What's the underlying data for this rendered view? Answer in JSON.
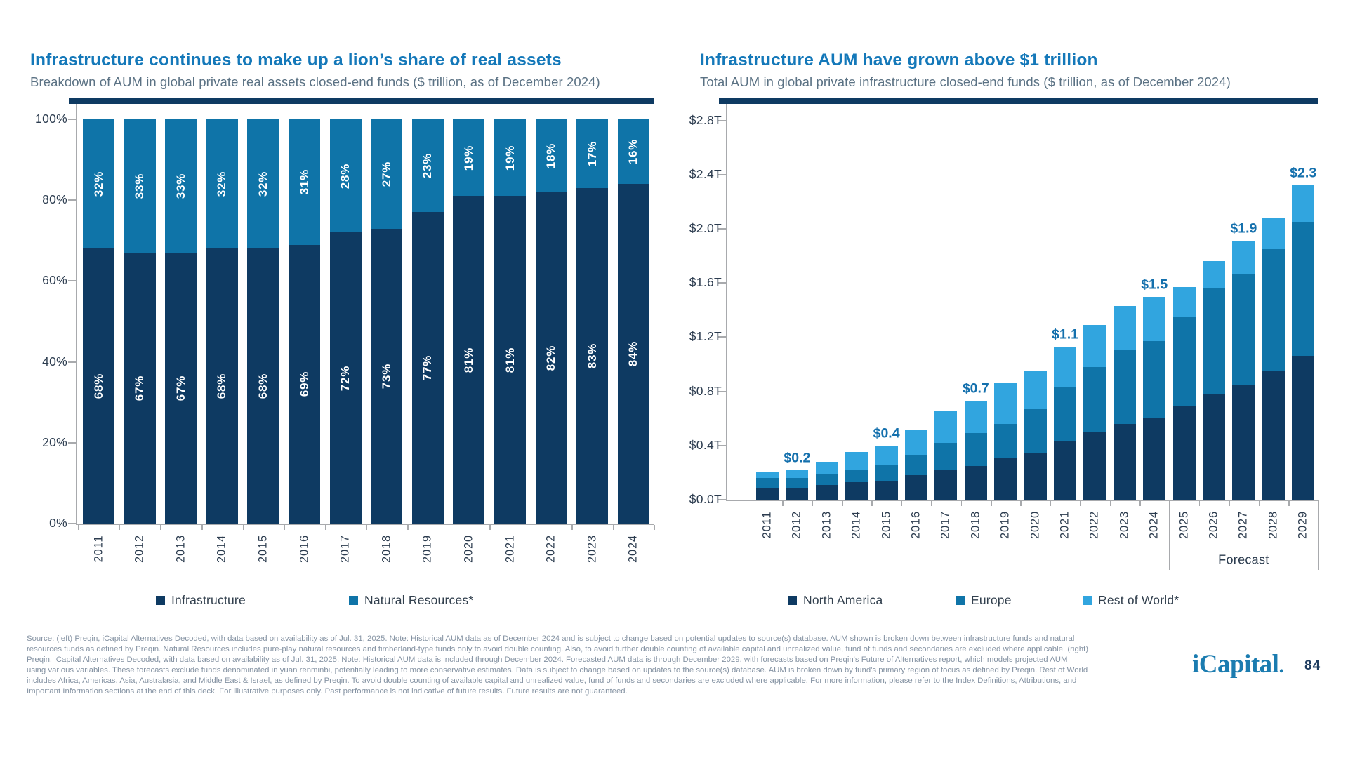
{
  "page": {
    "logo_text": "iCapital",
    "logo_period": ".",
    "page_number": "84",
    "background": "#ffffff"
  },
  "colors": {
    "navy": "#0e3a62",
    "medium_blue": "#0f74a8",
    "light_blue": "#31a5df",
    "title_blue": "#1478b9",
    "subtitle_gray": "#5b7284",
    "axis_gray": "#a8aaad",
    "tick_text": "#2c3c4f",
    "value_label_blue": "#1470ad",
    "footer_text": "#8593a3"
  },
  "chart_data": [
    {
      "id": "real-assets-breakdown",
      "type": "bar",
      "stacked": true,
      "units": "percent",
      "title": "Infrastructure continues to make up a lion’s share of real assets",
      "subtitle": "Breakdown of AUM in global private real assets closed-end funds ($ trillion, as of December 2024)",
      "categories": [
        "2011",
        "2012",
        "2013",
        "2014",
        "2015",
        "2016",
        "2017",
        "2018",
        "2019",
        "2020",
        "2021",
        "2022",
        "2023",
        "2024"
      ],
      "series": [
        {
          "name": "Infrastructure",
          "color": "#0e3a62",
          "values": [
            68,
            67,
            67,
            68,
            68,
            69,
            72,
            73,
            77,
            81,
            81,
            82,
            83,
            84
          ]
        },
        {
          "name": "Natural Resources*",
          "color": "#0f74a8",
          "values": [
            32,
            33,
            33,
            32,
            32,
            31,
            28,
            27,
            23,
            19,
            19,
            18,
            17,
            16
          ]
        }
      ],
      "ylim": [
        0,
        100
      ],
      "yticks": [
        "0%",
        "20%",
        "40%",
        "60%",
        "80%",
        "100%"
      ],
      "grid": false,
      "legend_position": "bottom",
      "segment_label_suffix": "%"
    },
    {
      "id": "infrastructure-aum",
      "type": "bar",
      "stacked": true,
      "units": "trillion_usd",
      "title": "Infrastructure AUM have grown above $1 trillion",
      "subtitle": "Total AUM in global private infrastructure closed-end funds ($ trillion, as of December 2024)",
      "categories": [
        "2011",
        "2012",
        "2013",
        "2014",
        "2015",
        "2016",
        "2017",
        "2018",
        "2019",
        "2020",
        "2021",
        "2022",
        "2023",
        "2024",
        "2025",
        "2026",
        "2027",
        "2028",
        "2029"
      ],
      "series": [
        {
          "name": "North America",
          "color": "#0e3a62",
          "values": [
            0.09,
            0.09,
            0.11,
            0.13,
            0.14,
            0.18,
            0.22,
            0.25,
            0.31,
            0.34,
            0.43,
            0.5,
            0.56,
            0.6,
            0.69,
            0.78,
            0.85,
            0.95,
            1.06
          ]
        },
        {
          "name": "Europe",
          "color": "#0f74a8",
          "values": [
            0.07,
            0.07,
            0.08,
            0.09,
            0.12,
            0.15,
            0.2,
            0.24,
            0.25,
            0.33,
            0.4,
            0.48,
            0.55,
            0.57,
            0.66,
            0.78,
            0.82,
            0.9,
            0.99
          ]
        },
        {
          "name": "Rest of World*",
          "color": "#31a5df",
          "values": [
            0.04,
            0.06,
            0.09,
            0.13,
            0.14,
            0.19,
            0.24,
            0.24,
            0.3,
            0.28,
            0.3,
            0.31,
            0.32,
            0.33,
            0.22,
            0.2,
            0.24,
            0.23,
            0.27
          ]
        }
      ],
      "ylim": [
        0,
        2.8
      ],
      "yticks": [
        "$0.0T",
        "$0.4T",
        "$0.8T",
        "$1.2T",
        "$1.6T",
        "$2.0T",
        "$2.4T",
        "$2.8T"
      ],
      "grid": false,
      "legend_position": "bottom",
      "total_labels": {
        "2012": "$0.2",
        "2015": "$0.4",
        "2018": "$0.7",
        "2021": "$1.1",
        "2024": "$1.5",
        "2027": "$1.9",
        "2029": "$2.3"
      },
      "forecast": {
        "label": "Forecast",
        "start_category": "2025"
      }
    }
  ],
  "footer": {
    "lines": [
      "Source: (left) Preqin, iCapital Alternatives Decoded, with data based on availability as of Jul. 31, 2025. Note: Historical AUM data as of December 2024 and is subject to change based on potential updates to source(s) database. AUM shown is broken down between infrastructure funds and natural",
      "resources funds as defined by Preqin. Natural Resources includes pure-play natural resources and timberland-type funds only to avoid double counting. Also, to avoid further double counting of available capital and unrealized value, fund of funds and secondaries are excluded where applicable. (right)",
      "Preqin, iCapital Alternatives Decoded, with data based on availability as of Jul. 31, 2025. Note: Historical AUM data is included through December 2024. Forecasted AUM data is through December 2029, with forecasts based on Preqin's Future of Alternatives report, which models projected AUM",
      "using various variables. These forecasts exclude funds denominated in yuan renminbi, potentially leading to more conservative estimates. Data is subject to change based on updates to the source(s) database. AUM is broken down by fund's primary region of focus as defined by Preqin. Rest of World",
      "includes Africa, Americas, Asia, Australasia, and Middle East & Israel, as defined by Preqin. To avoid double counting of available capital and unrealized value, fund of funds and secondaries are excluded where applicable. For more information, please refer to the Index Definitions, Attributions, and",
      "Important Information sections at the end of this deck. For illustrative purposes only. Past performance is not indicative of future results. Future results are not guaranteed."
    ]
  }
}
